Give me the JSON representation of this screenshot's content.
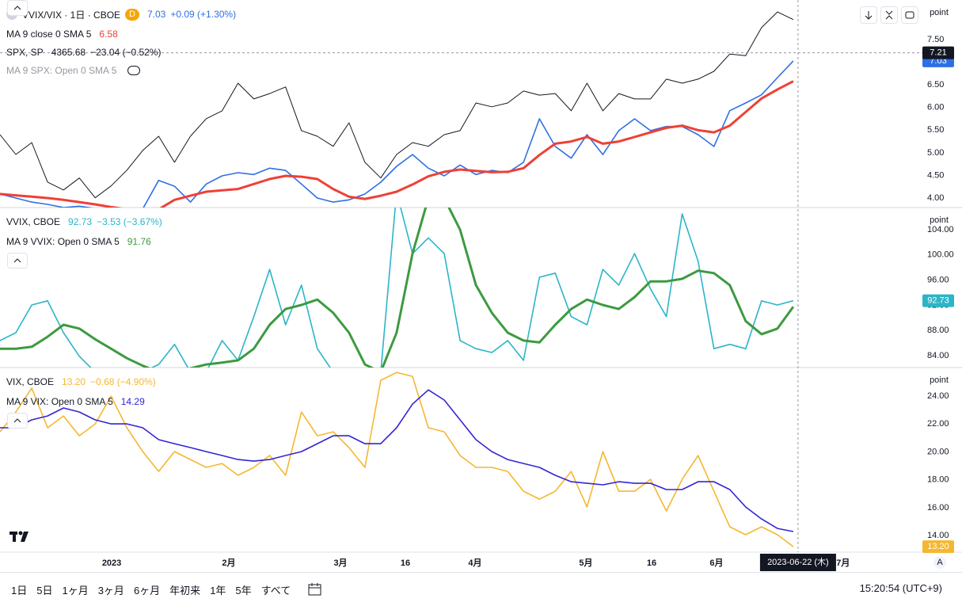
{
  "chart_data": [
    {
      "type": "line",
      "unit": "point",
      "xlim": [
        0,
        58.14
      ],
      "ylim": [
        3.79,
        8.375
      ],
      "y2lim": [
        3767,
        4428
      ],
      "yticks": [
        {
          "value": 4,
          "label": "4.00"
        },
        {
          "value": 4.5,
          "label": "4.50"
        },
        {
          "value": 5,
          "label": "5.00"
        },
        {
          "value": 5.5,
          "label": "5.50"
        },
        {
          "value": 6,
          "label": "6.00"
        },
        {
          "value": 6.5,
          "label": "6.50"
        },
        {
          "value": 7,
          "label": "7.00"
        },
        {
          "value": 7.5,
          "label": "7.50"
        }
      ],
      "badge": "D",
      "crosshair": {
        "x": 50.3,
        "x_label": "2023-06-22 (木)",
        "y": 7.21
      },
      "series": [
        {
          "name": "VVIX/VIX · 1日 · CBOE",
          "color": "#2f6fe4",
          "last_label": "7.03",
          "change": "+0.09 (+1.30%)",
          "values": [
            4.09,
            4.0,
            3.91,
            3.86,
            3.79,
            3.82,
            3.77,
            3.75,
            3.74,
            3.76,
            4.39,
            4.26,
            3.91,
            4.31,
            4.49,
            4.56,
            4.52,
            4.66,
            4.61,
            4.31,
            4.0,
            3.91,
            3.96,
            4.09,
            4.35,
            4.7,
            4.96,
            4.66,
            4.49,
            4.73,
            4.52,
            4.61,
            4.56,
            4.79,
            5.75,
            5.14,
            4.88,
            5.4,
            4.96,
            5.49,
            5.75,
            5.49,
            5.58,
            5.58,
            5.4,
            5.14,
            5.93,
            6.1,
            6.28,
            6.66,
            7.03
          ]
        },
        {
          "name": "MA 9 close 0 SMA 5",
          "color": "#ef4036",
          "last_label": "6.58",
          "values": [
            4.09,
            4.06,
            4.03,
            4.0,
            3.96,
            3.91,
            3.86,
            3.8,
            3.75,
            3.72,
            3.75,
            3.96,
            4.05,
            4.14,
            4.17,
            4.2,
            4.31,
            4.42,
            4.49,
            4.47,
            4.42,
            4.2,
            4.03,
            3.98,
            4.05,
            4.14,
            4.3,
            4.48,
            4.58,
            4.63,
            4.6,
            4.57,
            4.58,
            4.66,
            4.95,
            5.2,
            5.25,
            5.35,
            5.2,
            5.25,
            5.35,
            5.45,
            5.55,
            5.6,
            5.5,
            5.45,
            5.6,
            5.9,
            6.2,
            6.4,
            6.58
          ]
        },
        {
          "name": "SPX, SP",
          "color": "#131722",
          "axis": "y2",
          "last_label": "4365.68",
          "change": "−23.04 (−0.52%)",
          "values": [
            3999,
            3936,
            3974,
            3848,
            3823,
            3861,
            3798,
            3836,
            3886,
            3949,
            3994,
            3911,
            3994,
            4050,
            4075,
            4163,
            4113,
            4130,
            4151,
            4012,
            3994,
            3962,
            4037,
            3911,
            3861,
            3936,
            3974,
            3962,
            3999,
            4012,
            4100,
            4088,
            4100,
            4138,
            4125,
            4130,
            4075,
            4163,
            4075,
            4130,
            4113,
            4113,
            4176,
            4163,
            4176,
            4201,
            4256,
            4251,
            4340,
            4390,
            4365.68
          ]
        }
      ],
      "hidden_indicators": [
        "MA 9 SPX: Open 0 SMA 5"
      ]
    },
    {
      "type": "line",
      "unit": "point",
      "xlim": [
        0,
        58.14
      ],
      "ylim": [
        82.11,
        107.52
      ],
      "yticks": [
        {
          "value": 84,
          "label": "84.00"
        },
        {
          "value": 88,
          "label": "88.00"
        },
        {
          "value": 92,
          "label": "92.00"
        },
        {
          "value": 96,
          "label": "96.00"
        },
        {
          "value": 100,
          "label": "100.00"
        },
        {
          "value": 104,
          "label": "104.00"
        }
      ],
      "series": [
        {
          "name": "VVIX, CBOE",
          "color": "#2bb5c8",
          "last_label": "92.73",
          "change": "−3.53 (−3.67%)",
          "values": [
            86.4,
            87.65,
            92.05,
            92.7,
            87.65,
            83.9,
            81.4,
            81.4,
            81.4,
            81.4,
            82.6,
            85.8,
            81.4,
            81.4,
            86.4,
            83.25,
            90.2,
            97.7,
            88.9,
            95.2,
            85.1,
            81.4,
            81.4,
            81.4,
            81.4,
            110,
            100.2,
            102.7,
            100.2,
            86.4,
            85.1,
            84.5,
            86.4,
            83.25,
            96.45,
            97.1,
            90.2,
            88.9,
            97.7,
            95.2,
            100.2,
            94.6,
            90.2,
            106.5,
            99.0,
            85.1,
            85.8,
            85.1,
            92.7,
            92.05,
            92.73
          ]
        },
        {
          "name": "MA 9 VVIX: Open 0 SMA 5",
          "color": "#3d9a41",
          "last_label": "91.76",
          "values": [
            85.1,
            85.1,
            85.4,
            87.0,
            88.9,
            88.3,
            86.6,
            85.1,
            83.6,
            82.4,
            81.4,
            81.4,
            82.0,
            82.6,
            82.9,
            83.25,
            85.1,
            88.9,
            91.4,
            92.05,
            92.9,
            90.8,
            87.65,
            82.6,
            81.4,
            87.65,
            100.2,
            109,
            109,
            104,
            95.2,
            90.8,
            87.65,
            86.4,
            86.1,
            88.9,
            91.4,
            92.9,
            92.05,
            91.4,
            93.3,
            95.8,
            95.8,
            96.2,
            97.5,
            97.1,
            95.2,
            89.5,
            87.4,
            88.3,
            91.76
          ]
        }
      ]
    },
    {
      "type": "line",
      "unit": "point",
      "xlim": [
        0,
        58.14
      ],
      "ylim": [
        12.81,
        26.05
      ],
      "yticks": [
        {
          "value": 14,
          "label": "14.00"
        },
        {
          "value": 16,
          "label": "16.00"
        },
        {
          "value": 18,
          "label": "18.00"
        },
        {
          "value": 20,
          "label": "20.00"
        },
        {
          "value": 22,
          "label": "22.00"
        },
        {
          "value": 24,
          "label": "24.00"
        }
      ],
      "xticks": [
        {
          "value": 7.04,
          "label": "2023"
        },
        {
          "value": 14.42,
          "label": "2月"
        },
        {
          "value": 21.46,
          "label": "3月"
        },
        {
          "value": 25.55,
          "label": "16"
        },
        {
          "value": 29.94,
          "label": "4月"
        },
        {
          "value": 36.93,
          "label": "5月"
        },
        {
          "value": 41.07,
          "label": "16"
        },
        {
          "value": 45.16,
          "label": "6月"
        },
        {
          "value": 53.14,
          "label": "7月"
        }
      ],
      "series": [
        {
          "name": "VIX, CBOE",
          "color": "#f5b731",
          "last_label": "13.20",
          "change": "−0.68 (−4.90%)",
          "values": [
            21.44,
            22.86,
            24.57,
            21.73,
            22.58,
            21.16,
            22.01,
            24,
            21.73,
            20.02,
            18.6,
            20.02,
            19.45,
            18.89,
            19.17,
            18.32,
            18.89,
            19.74,
            18.32,
            22.86,
            21.16,
            21.44,
            20.31,
            18.89,
            25.14,
            25.7,
            25.42,
            21.73,
            21.44,
            19.74,
            18.89,
            18.89,
            18.6,
            17.18,
            16.61,
            17.18,
            18.6,
            16.05,
            20.02,
            17.18,
            17.18,
            18.03,
            15.76,
            18.03,
            19.74,
            17.18,
            14.63,
            14.06,
            14.63,
            14.06,
            13.2
          ]
        },
        {
          "name": "MA 9 VIX: Open 0 SMA 5",
          "color": "#3326d4",
          "last_label": "14.29",
          "values": [
            21.73,
            21.73,
            22.3,
            22.58,
            23.15,
            22.86,
            22.3,
            22.01,
            22.01,
            21.73,
            20.88,
            20.59,
            20.31,
            20.02,
            19.74,
            19.45,
            19.34,
            19.45,
            19.74,
            20.02,
            20.59,
            21.16,
            21.16,
            20.59,
            20.59,
            21.73,
            23.43,
            24.45,
            23.72,
            22.3,
            20.88,
            20.02,
            19.45,
            19.17,
            18.89,
            18.32,
            17.86,
            17.75,
            17.64,
            17.86,
            17.75,
            17.75,
            17.3,
            17.3,
            17.86,
            17.86,
            17.3,
            16.05,
            15.19,
            14.51,
            14.29
          ]
        }
      ]
    }
  ],
  "toolbar": {
    "ranges": [
      "1日",
      "5日",
      "1ヶ月",
      "3ヶ月",
      "6ヶ月",
      "年初来",
      "1年",
      "5年",
      "すべて"
    ],
    "clock": "15:20:54 (UTC+9)",
    "auto": "A"
  }
}
